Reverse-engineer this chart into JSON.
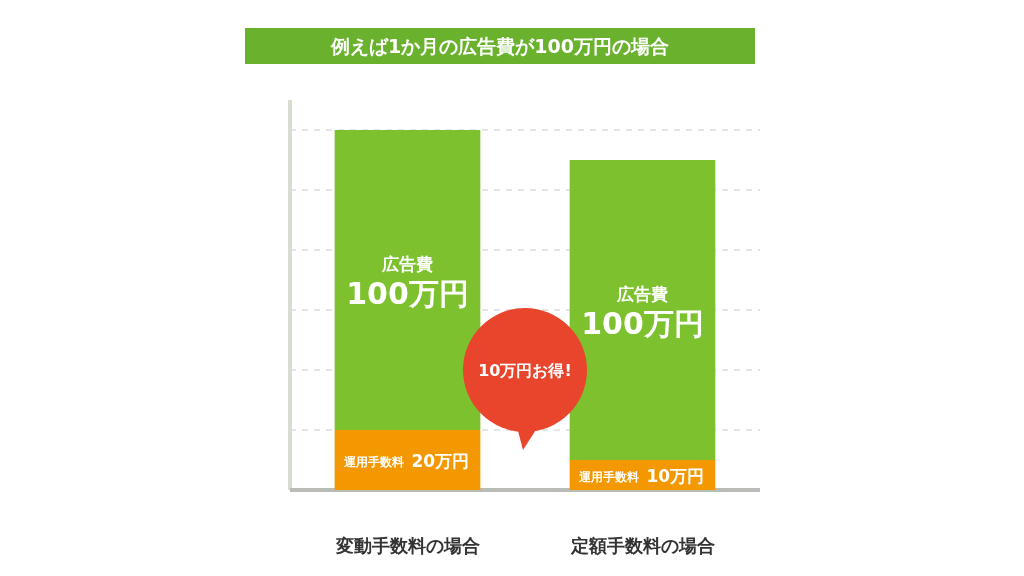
{
  "chart_data": {
    "type": "bar",
    "stacked": true,
    "title": "例えば1か月の広告費が100万円の場合",
    "categories": [
      "変動手数料の場合",
      "定額手数料の場合"
    ],
    "series": [
      {
        "name": "運用手数料",
        "color": "#f39800",
        "values": [
          20,
          10
        ],
        "value_labels": [
          "20万円",
          "10万円"
        ]
      },
      {
        "name": "広告費",
        "color": "#7dc22e",
        "values": [
          100,
          100
        ],
        "value_labels": [
          "100万円",
          "100万円"
        ]
      }
    ],
    "ylim": [
      0,
      130
    ],
    "yticks": [
      {
        "value": 20,
        "label": null
      },
      {
        "value": 40,
        "label": null
      },
      {
        "value": 60,
        "label": null
      },
      {
        "value": 80,
        "label": null
      },
      {
        "value": 100,
        "label": null
      },
      {
        "value": 120,
        "label": null
      }
    ],
    "grid": "y",
    "tick_labels": "x",
    "annotations": [
      "10万円お得!"
    ]
  }
}
